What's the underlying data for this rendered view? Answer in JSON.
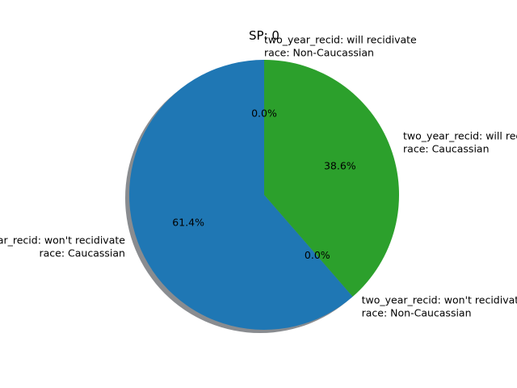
{
  "chart_data": {
    "type": "pie",
    "title": "SP: 0",
    "slices": [
      {
        "label_line1": "two_year_recid: won't recidivate",
        "label_line2": "race: Caucassian",
        "value": 61.4,
        "pct_label": "61.4%",
        "color": "#1f77b4"
      },
      {
        "label_line1": "two_year_recid: won't recidivate",
        "label_line2": "race: Non-Caucassian",
        "value": 0.0,
        "pct_label": "0.0%",
        "color": "#ff7f0e"
      },
      {
        "label_line1": "two_year_recid: will recidivate",
        "label_line2": "race: Caucassian",
        "value": 38.6,
        "pct_label": "38.6%",
        "color": "#2ca02c"
      },
      {
        "label_line1": "two_year_recid: will recidivate",
        "label_line2": "race: Non-Caucassian",
        "value": 0.0,
        "pct_label": "0.0%",
        "color": "#d62728"
      }
    ],
    "start_angle_deg": 90,
    "direction": "counterclockwise",
    "shadow": true
  }
}
